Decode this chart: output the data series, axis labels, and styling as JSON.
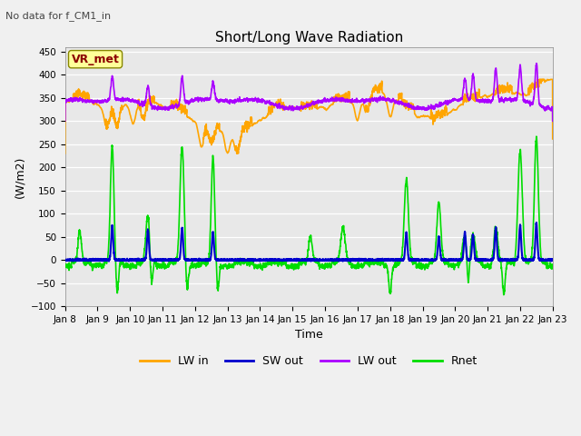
{
  "title": "Short/Long Wave Radiation",
  "subtitle": "No data for f_CM1_in",
  "xlabel": "Time",
  "ylabel": "(W/m2)",
  "ylim": [
    -100,
    460
  ],
  "yticks": [
    -100,
    -50,
    0,
    50,
    100,
    150,
    200,
    250,
    300,
    350,
    400,
    450
  ],
  "x_labels": [
    "Jan 8",
    "Jan 9",
    "Jan 10",
    "Jan 11",
    "Jan 12",
    "Jan 13",
    "Jan 14",
    "Jan 15",
    "Jan 16",
    "Jan 17",
    "Jan 18",
    "Jan 19",
    "Jan 20",
    "Jan 21",
    "Jan 22",
    "Jan 23"
  ],
  "legend_items": [
    {
      "label": "LW in",
      "color": "#FFA500",
      "lw": 1.2
    },
    {
      "label": "SW out",
      "color": "#0000CD",
      "lw": 1.5
    },
    {
      "label": "LW out",
      "color": "#AA00FF",
      "lw": 1.2
    },
    {
      "label": "Rnet",
      "color": "#00DD00",
      "lw": 1.2
    }
  ],
  "vr_met_box": {
    "text": "VR_met",
    "facecolor": "#FFFF99",
    "edgecolor": "#888800",
    "textcolor": "#8B0000",
    "fontsize": 9
  },
  "bg_color": "#E8E8E8",
  "grid_color": "#FFFFFF",
  "n_points": 5000,
  "figsize": [
    6.4,
    4.8
  ],
  "dpi": 100
}
